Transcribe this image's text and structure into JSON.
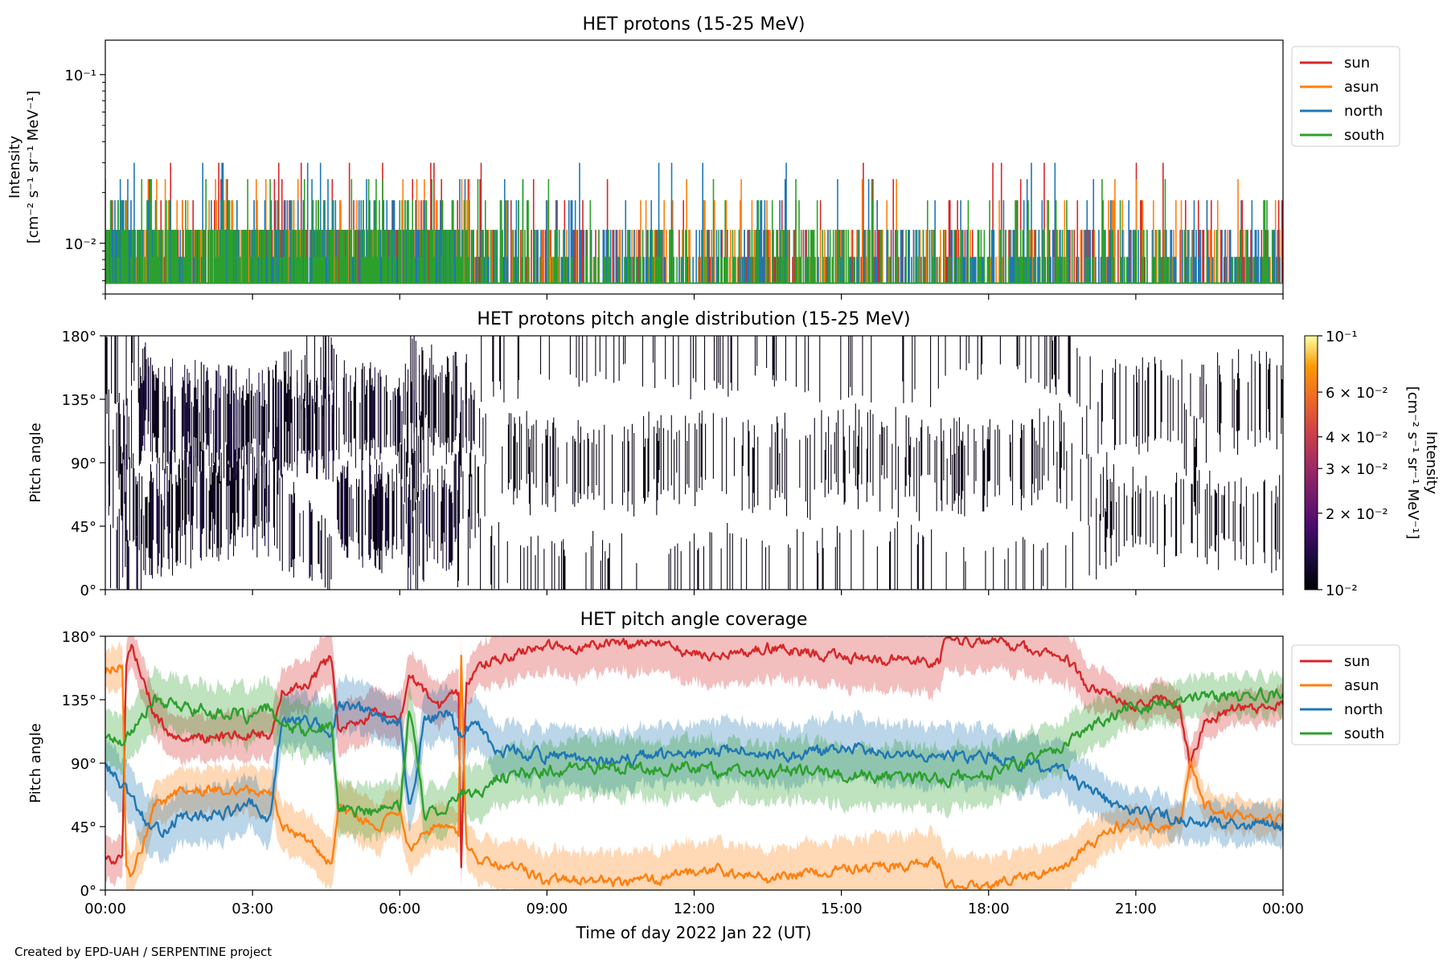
{
  "credit": "Created by EPD-UAH / SERPENTINE project",
  "xlabel": "Time of day 2022 Jan 22 (UT)",
  "x_tick_labels": [
    "00:00",
    "03:00",
    "06:00",
    "09:00",
    "12:00",
    "15:00",
    "18:00",
    "21:00",
    "00:00"
  ],
  "colors": {
    "sun": "#d62728",
    "asun": "#ff7f0e",
    "north": "#1f77b4",
    "south": "#2ca02c"
  },
  "chart_data": [
    {
      "type": "line",
      "title": "HET protons (15-25 MeV)",
      "ylabel_line1": "Intensity",
      "ylabel_line2": "[cm⁻² s⁻¹ sr⁻¹ MeV⁻¹]",
      "yscale": "log",
      "ylim": [
        0.005,
        0.16
      ],
      "y_ticks": [
        {
          "value": 0.1,
          "label": "10⁻¹"
        },
        {
          "value": 0.01,
          "label": "10⁻²"
        }
      ],
      "xlim_hours": [
        0,
        24
      ],
      "legend": {
        "position": "top-right",
        "entries": [
          "sun",
          "asun",
          "north",
          "south"
        ]
      },
      "series": [
        {
          "name": "sun",
          "color": "#d62728",
          "baseline": 0.0058,
          "levels": [
            0.0083,
            0.012,
            0.018,
            0.024,
            0.03
          ],
          "noise_seed": 11
        },
        {
          "name": "asun",
          "color": "#ff7f0e",
          "baseline": 0.0058,
          "levels": [
            0.0083,
            0.012,
            0.018,
            0.024
          ],
          "noise_seed": 23
        },
        {
          "name": "north",
          "color": "#1f77b4",
          "baseline": 0.0058,
          "levels": [
            0.0083,
            0.012,
            0.018,
            0.024,
            0.03
          ],
          "noise_seed": 37
        },
        {
          "name": "south",
          "color": "#2ca02c",
          "baseline": 0.0058,
          "levels": [
            0.0083,
            0.012,
            0.018,
            0.024
          ],
          "noise_seed": 41
        }
      ]
    },
    {
      "type": "heatmap",
      "title": "HET protons pitch angle distribution (15-25 MeV)",
      "ylabel": "Pitch angle",
      "ylim": [
        0,
        180
      ],
      "y_ticks": [
        {
          "value": 0,
          "label": "0°"
        },
        {
          "value": 45,
          "label": "45°"
        },
        {
          "value": 90,
          "label": "90°"
        },
        {
          "value": 135,
          "label": "135°"
        },
        {
          "value": 180,
          "label": "180°"
        }
      ],
      "xlim_hours": [
        0,
        24
      ],
      "colorbar": {
        "label_line1": "Intensity",
        "label_line2": "[cm⁻² s⁻¹ sr⁻¹ MeV⁻¹]",
        "range": [
          0.01,
          0.1
        ],
        "scale": "log",
        "ticks": [
          {
            "value": 0.01,
            "label": "10⁻²"
          },
          {
            "value": 0.02,
            "label": "2 × 10⁻²"
          },
          {
            "value": 0.03,
            "label": "3 × 10⁻²"
          },
          {
            "value": 0.04,
            "label": "4 × 10⁻²"
          },
          {
            "value": 0.06,
            "label": "6 × 10⁻²"
          },
          {
            "value": 0.1,
            "label": "10⁻¹"
          }
        ]
      }
    },
    {
      "type": "area",
      "title": "HET pitch angle coverage",
      "ylabel": "Pitch angle",
      "ylim": [
        0,
        180
      ],
      "y_ticks": [
        {
          "value": 0,
          "label": "0°"
        },
        {
          "value": 45,
          "label": "45°"
        },
        {
          "value": 90,
          "label": "90°"
        },
        {
          "value": 135,
          "label": "135°"
        },
        {
          "value": 180,
          "label": "180°"
        }
      ],
      "xlim_hours": [
        0,
        24
      ],
      "legend": {
        "position": "top-right",
        "entries": [
          "sun",
          "asun",
          "north",
          "south"
        ]
      },
      "series": [
        {
          "name": "sun",
          "color": "#d62728",
          "keypoints": [
            [
              0,
              25
            ],
            [
              0.35,
              20
            ],
            [
              0.42,
              160
            ],
            [
              0.55,
              172
            ],
            [
              0.8,
              150
            ],
            [
              1.0,
              125
            ],
            [
              1.3,
              110
            ],
            [
              2.0,
              108
            ],
            [
              3.0,
              110
            ],
            [
              3.35,
              110
            ],
            [
              3.6,
              140
            ],
            [
              4.2,
              148
            ],
            [
              4.6,
              165
            ],
            [
              4.75,
              115
            ],
            [
              5.5,
              125
            ],
            [
              6.0,
              120
            ],
            [
              6.2,
              150
            ],
            [
              6.5,
              140
            ],
            [
              6.8,
              130
            ],
            [
              7.2,
              140
            ],
            [
              7.25,
              10
            ],
            [
              7.35,
              145
            ],
            [
              7.6,
              160
            ],
            [
              8.5,
              168
            ],
            [
              9.0,
              175
            ],
            [
              9.5,
              172
            ],
            [
              10.5,
              176
            ],
            [
              11.5,
              172
            ],
            [
              12.3,
              165
            ],
            [
              13.5,
              172
            ],
            [
              15.0,
              165
            ],
            [
              16.0,
              163
            ],
            [
              17.0,
              162
            ],
            [
              17.1,
              177
            ],
            [
              18.0,
              177
            ],
            [
              19.0,
              170
            ],
            [
              19.6,
              163
            ],
            [
              20.0,
              145
            ],
            [
              20.6,
              135
            ],
            [
              21.0,
              130
            ],
            [
              21.5,
              135
            ],
            [
              21.9,
              130
            ],
            [
              22.1,
              88
            ],
            [
              22.4,
              120
            ],
            [
              23.0,
              128
            ],
            [
              24.0,
              132
            ]
          ],
          "width": [
            [
              0,
              15
            ],
            [
              4.6,
              18
            ],
            [
              7.3,
              15
            ],
            [
              9.0,
              20
            ],
            [
              17.0,
              22
            ],
            [
              19.6,
              18
            ],
            [
              21.0,
              12
            ],
            [
              24.0,
              12
            ]
          ],
          "noise": 6,
          "seed": 5
        },
        {
          "name": "asun",
          "color": "#ff7f0e",
          "keypoints": [
            [
              0,
              155
            ],
            [
              0.35,
              162
            ],
            [
              0.42,
              20
            ],
            [
              0.55,
              10
            ],
            [
              0.8,
              35
            ],
            [
              1.0,
              60
            ],
            [
              1.5,
              70
            ],
            [
              2.5,
              72
            ],
            [
              3.0,
              70
            ],
            [
              3.4,
              70
            ],
            [
              3.6,
              45
            ],
            [
              4.2,
              35
            ],
            [
              4.6,
              18
            ],
            [
              4.75,
              60
            ],
            [
              5.5,
              45
            ],
            [
              6.0,
              55
            ],
            [
              6.2,
              28
            ],
            [
              6.5,
              40
            ],
            [
              6.8,
              48
            ],
            [
              7.2,
              38
            ],
            [
              7.25,
              170
            ],
            [
              7.35,
              35
            ],
            [
              7.6,
              20
            ],
            [
              8.5,
              15
            ],
            [
              9.0,
              5
            ],
            [
              9.5,
              8
            ],
            [
              10.5,
              5
            ],
            [
              11.5,
              8
            ],
            [
              12.3,
              15
            ],
            [
              13.5,
              8
            ],
            [
              15.0,
              15
            ],
            [
              16.0,
              17
            ],
            [
              17.0,
              18
            ],
            [
              17.1,
              3
            ],
            [
              18.0,
              3
            ],
            [
              19.0,
              10
            ],
            [
              19.6,
              17
            ],
            [
              20.0,
              30
            ],
            [
              20.6,
              45
            ],
            [
              21.0,
              50
            ],
            [
              21.5,
              45
            ],
            [
              21.9,
              48
            ],
            [
              22.1,
              90
            ],
            [
              22.4,
              60
            ],
            [
              23.0,
              52
            ],
            [
              24.0,
              48
            ]
          ],
          "width": [
            [
              0,
              15
            ],
            [
              4.6,
              18
            ],
            [
              7.3,
              15
            ],
            [
              9.0,
              20
            ],
            [
              17.0,
              22
            ],
            [
              19.6,
              18
            ],
            [
              21.0,
              12
            ],
            [
              24.0,
              12
            ]
          ],
          "noise": 6,
          "seed": 9
        },
        {
          "name": "north",
          "color": "#1f77b4",
          "keypoints": [
            [
              0,
              90
            ],
            [
              0.3,
              75
            ],
            [
              0.7,
              55
            ],
            [
              1.0,
              40
            ],
            [
              1.5,
              50
            ],
            [
              2.5,
              55
            ],
            [
              3.0,
              60
            ],
            [
              3.35,
              48
            ],
            [
              3.6,
              120
            ],
            [
              4.2,
              120
            ],
            [
              4.6,
              110
            ],
            [
              4.75,
              130
            ],
            [
              5.5,
              125
            ],
            [
              6.0,
              120
            ],
            [
              6.2,
              55
            ],
            [
              6.5,
              120
            ],
            [
              7.0,
              125
            ],
            [
              7.25,
              110
            ],
            [
              7.5,
              120
            ],
            [
              8.0,
              100
            ],
            [
              9.0,
              95
            ],
            [
              10.0,
              90
            ],
            [
              11.0,
              95
            ],
            [
              12.0,
              95
            ],
            [
              13.0,
              100
            ],
            [
              14.0,
              95
            ],
            [
              15.0,
              100
            ],
            [
              16.0,
              100
            ],
            [
              17.0,
              95
            ],
            [
              18.0,
              95
            ],
            [
              19.0,
              88
            ],
            [
              19.6,
              82
            ],
            [
              20.0,
              70
            ],
            [
              20.6,
              60
            ],
            [
              21.0,
              55
            ],
            [
              22.0,
              50
            ],
            [
              23.0,
              48
            ],
            [
              24.0,
              45
            ]
          ],
          "width": [
            [
              0,
              20
            ],
            [
              7.3,
              18
            ],
            [
              9.0,
              20
            ],
            [
              17.0,
              22
            ],
            [
              19.6,
              18
            ],
            [
              21.0,
              14
            ],
            [
              24.0,
              14
            ]
          ],
          "noise": 7,
          "seed": 13
        },
        {
          "name": "south",
          "color": "#2ca02c",
          "keypoints": [
            [
              0,
              110
            ],
            [
              0.3,
              105
            ],
            [
              0.7,
              120
            ],
            [
              1.0,
              135
            ],
            [
              1.5,
              130
            ],
            [
              2.5,
              125
            ],
            [
              3.0,
              122
            ],
            [
              3.35,
              130
            ],
            [
              3.6,
              115
            ],
            [
              4.2,
              112
            ],
            [
              4.6,
              118
            ],
            [
              4.75,
              58
            ],
            [
              5.5,
              55
            ],
            [
              6.0,
              60
            ],
            [
              6.2,
              130
            ],
            [
              6.5,
              55
            ],
            [
              7.0,
              60
            ],
            [
              7.25,
              70
            ],
            [
              7.5,
              65
            ],
            [
              8.0,
              80
            ],
            [
              9.0,
              85
            ],
            [
              10.0,
              88
            ],
            [
              11.0,
              85
            ],
            [
              12.0,
              88
            ],
            [
              13.0,
              82
            ],
            [
              14.0,
              85
            ],
            [
              15.0,
              82
            ],
            [
              16.0,
              80
            ],
            [
              17.0,
              78
            ],
            [
              18.0,
              82
            ],
            [
              19.0,
              95
            ],
            [
              19.6,
              105
            ],
            [
              20.0,
              115
            ],
            [
              20.6,
              125
            ],
            [
              21.0,
              130
            ],
            [
              22.0,
              135
            ],
            [
              23.0,
              138
            ],
            [
              24.0,
              138
            ]
          ],
          "width": [
            [
              0,
              20
            ],
            [
              7.3,
              18
            ],
            [
              9.0,
              20
            ],
            [
              17.0,
              22
            ],
            [
              19.6,
              18
            ],
            [
              21.0,
              14
            ],
            [
              24.0,
              14
            ]
          ],
          "noise": 7,
          "seed": 17
        }
      ]
    }
  ]
}
